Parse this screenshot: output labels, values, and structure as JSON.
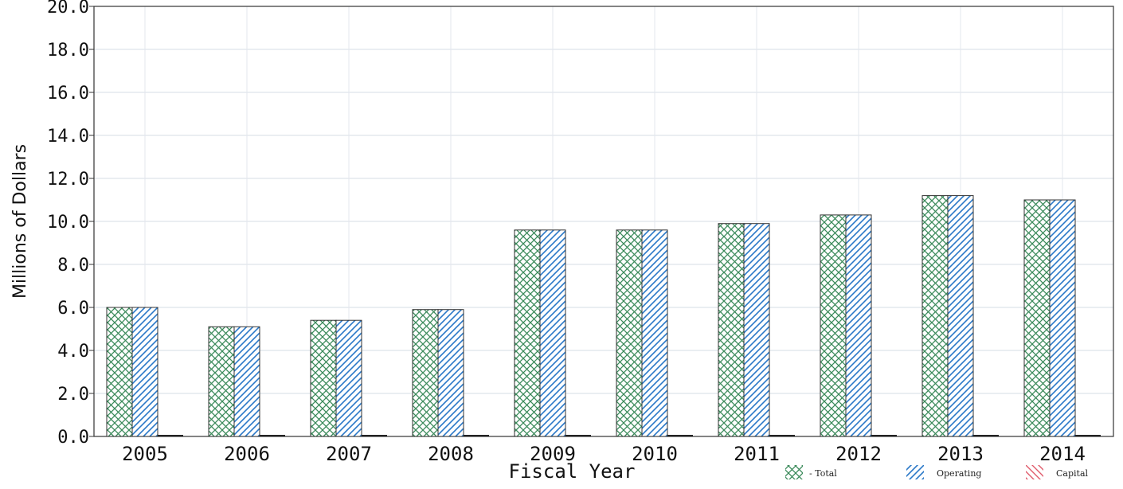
{
  "chart_data": {
    "type": "bar",
    "title": "",
    "xlabel": "Fiscal Year",
    "ylabel": "Millions of Dollars",
    "categories": [
      "2005",
      "2006",
      "2007",
      "2008",
      "2009",
      "2010",
      "2011",
      "2012",
      "2013",
      "2014"
    ],
    "series": [
      {
        "name": "Total",
        "color": "#3a8a5a",
        "pattern": "crosshatch",
        "values": [
          6.0,
          5.1,
          5.4,
          5.9,
          9.6,
          9.6,
          9.9,
          10.3,
          11.2,
          11.0
        ]
      },
      {
        "name": "Operating",
        "color": "#2a78c8",
        "pattern": "diagonal",
        "values": [
          6.0,
          5.1,
          5.4,
          5.9,
          9.6,
          9.6,
          9.9,
          10.3,
          11.2,
          11.0
        ]
      },
      {
        "name": "Capital",
        "color": "#e05a6a",
        "pattern": "diagonal",
        "values": [
          0,
          0,
          0,
          0,
          0,
          0,
          0,
          0,
          0,
          0
        ]
      }
    ],
    "ylim": [
      0,
      20
    ],
    "yticks": [
      "0.0",
      "2.0",
      "4.0",
      "6.0",
      "8.0",
      "10.0",
      "12.0",
      "14.0",
      "16.0",
      "18.0",
      "20.0"
    ],
    "grid": true,
    "legend_position": "bottom-right",
    "legend": [
      "- Total",
      "Operating",
      "Capital"
    ]
  }
}
